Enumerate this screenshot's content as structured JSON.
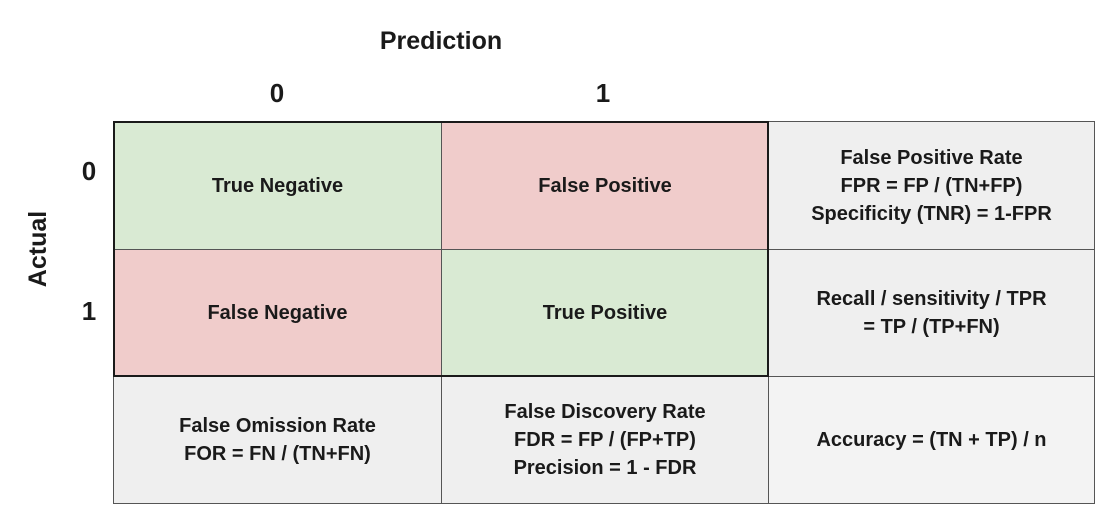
{
  "colors": {
    "correct_fill": "#d9ead3",
    "error_fill": "#f0cccb",
    "metric_fill": "#efefef",
    "accuracy_fill": "#f3f3f3"
  },
  "header": {
    "prediction_label": "Prediction",
    "actual_label": "Actual"
  },
  "columns": [
    "0",
    "1"
  ],
  "rows": [
    "0",
    "1"
  ],
  "matrix": {
    "tn": "True Negative",
    "fp": "False Positive",
    "fn": "False Negative",
    "tp": "True Positive"
  },
  "row_metrics": {
    "fpr": [
      "False Positive Rate",
      "FPR = FP / (TN+FP)",
      "Specificity (TNR) = 1-FPR"
    ],
    "recall": [
      "Recall / sensitivity / TPR",
      "= TP / (TP+FN)"
    ]
  },
  "col_metrics": {
    "for": [
      "False Omission Rate",
      "FOR = FN / (TN+FN)"
    ],
    "fdr": [
      "False Discovery Rate",
      "FDR = FP / (FP+TP)",
      "Precision = 1 - FDR"
    ]
  },
  "accuracy": "Accuracy = (TN + TP) / n"
}
